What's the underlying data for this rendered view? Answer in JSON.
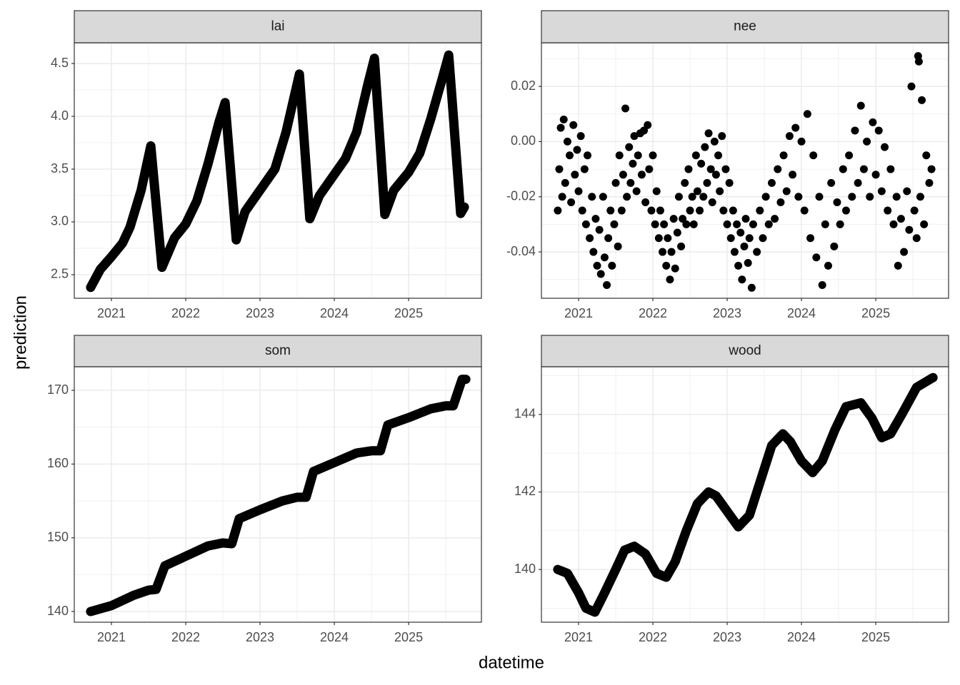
{
  "xlabel": "datetime",
  "ylabel": "prediction",
  "chart_data": [
    {
      "type": "line",
      "title": "lai",
      "color": "#000000",
      "grid": true,
      "xlim": [
        2020.5,
        2025.98
      ],
      "xticks": [
        2021,
        2022,
        2023,
        2024,
        2025
      ],
      "ylim": [
        2.277,
        4.696
      ],
      "yticks": [
        2.5,
        {
          "value": 3,
          "label": "3.0"
        },
        3.5,
        {
          "value": 4,
          "label": "4.0"
        },
        4.5
      ],
      "x": [
        2020.72,
        2020.85,
        2021.0,
        2021.15,
        2021.25,
        2021.4,
        2021.53,
        2021.68,
        2021.85,
        2022.0,
        2022.15,
        2022.3,
        2022.45,
        2022.53,
        2022.68,
        2022.8,
        2023.0,
        2023.2,
        2023.35,
        2023.53,
        2023.67,
        2023.8,
        2024.0,
        2024.15,
        2024.3,
        2024.45,
        2024.54,
        2024.68,
        2024.8,
        2025.0,
        2025.15,
        2025.3,
        2025.45,
        2025.54,
        2025.7,
        2025.75
      ],
      "values": [
        2.38,
        2.55,
        2.67,
        2.8,
        2.95,
        3.3,
        3.72,
        2.57,
        2.85,
        2.98,
        3.2,
        3.55,
        3.95,
        4.13,
        2.83,
        3.1,
        3.3,
        3.5,
        3.85,
        4.4,
        3.03,
        3.25,
        3.45,
        3.6,
        3.85,
        4.3,
        4.55,
        3.07,
        3.3,
        3.47,
        3.65,
        3.98,
        4.35,
        4.58,
        3.08,
        3.14
      ]
    },
    {
      "type": "scatter",
      "title": "nee",
      "color": "#000000",
      "grid": true,
      "xlim": [
        2020.5,
        2025.98
      ],
      "xticks": [
        2021,
        2022,
        2023,
        2024,
        2025
      ],
      "ylim": [
        -0.0568,
        0.0358
      ],
      "yticks": [
        -0.04,
        -0.02,
        {
          "value": 0,
          "label": "0.00"
        },
        0.02
      ],
      "x": [
        2020.72,
        2020.74,
        2020.76,
        2020.78,
        2020.8,
        2020.82,
        2020.85,
        2020.88,
        2020.9,
        2020.93,
        2020.95,
        2020.98,
        2021.0,
        2021.03,
        2021.05,
        2021.08,
        2021.1,
        2021.12,
        2021.15,
        2021.18,
        2021.2,
        2021.23,
        2021.25,
        2021.28,
        2021.3,
        2021.33,
        2021.35,
        2021.38,
        2021.4,
        2021.43,
        2021.45,
        2021.48,
        2021.5,
        2021.53,
        2021.55,
        2021.58,
        2021.6,
        2021.63,
        2021.65,
        2021.68,
        2021.7,
        2021.73,
        2021.75,
        2021.78,
        2021.8,
        2021.83,
        2021.85,
        2021.88,
        2021.9,
        2021.93,
        2021.95,
        2021.98,
        2022.0,
        2022.03,
        2022.05,
        2022.08,
        2022.1,
        2022.13,
        2022.15,
        2022.18,
        2022.2,
        2022.23,
        2022.25,
        2022.28,
        2022.3,
        2022.33,
        2022.35,
        2022.38,
        2022.4,
        2022.43,
        2022.45,
        2022.48,
        2022.5,
        2022.53,
        2022.55,
        2022.58,
        2022.6,
        2022.63,
        2022.65,
        2022.68,
        2022.7,
        2022.73,
        2022.75,
        2022.78,
        2022.8,
        2022.83,
        2022.85,
        2022.88,
        2022.9,
        2022.93,
        2022.95,
        2022.98,
        2023.0,
        2023.03,
        2023.05,
        2023.08,
        2023.1,
        2023.13,
        2023.15,
        2023.18,
        2023.2,
        2023.23,
        2023.25,
        2023.28,
        2023.3,
        2023.33,
        2023.35,
        2023.4,
        2023.44,
        2023.48,
        2023.52,
        2023.56,
        2023.6,
        2023.64,
        2023.68,
        2023.72,
        2023.76,
        2023.8,
        2023.84,
        2023.88,
        2023.92,
        2023.96,
        2024.0,
        2024.04,
        2024.08,
        2024.12,
        2024.16,
        2024.2,
        2024.24,
        2024.28,
        2024.32,
        2024.36,
        2024.4,
        2024.44,
        2024.48,
        2024.52,
        2024.56,
        2024.6,
        2024.64,
        2024.68,
        2024.72,
        2024.76,
        2024.8,
        2024.84,
        2024.88,
        2024.92,
        2024.96,
        2025.0,
        2025.04,
        2025.08,
        2025.12,
        2025.16,
        2025.2,
        2025.24,
        2025.28,
        2025.3,
        2025.34,
        2025.38,
        2025.42,
        2025.45,
        2025.48,
        2025.52,
        2025.55,
        2025.57,
        2025.58,
        2025.6,
        2025.62,
        2025.65,
        2025.68,
        2025.72,
        2025.75
      ],
      "values": [
        -0.025,
        -0.01,
        0.005,
        -0.02,
        0.008,
        -0.015,
        0.0,
        -0.005,
        -0.022,
        0.006,
        -0.012,
        -0.003,
        -0.018,
        0.002,
        -0.025,
        -0.01,
        -0.03,
        -0.005,
        -0.035,
        -0.02,
        -0.04,
        -0.028,
        -0.045,
        -0.032,
        -0.048,
        -0.02,
        -0.042,
        -0.052,
        -0.035,
        -0.025,
        -0.045,
        -0.03,
        -0.015,
        -0.038,
        -0.005,
        -0.025,
        -0.012,
        0.012,
        -0.02,
        -0.002,
        -0.015,
        -0.008,
        0.002,
        -0.018,
        -0.005,
        0.003,
        -0.012,
        0.004,
        -0.022,
        0.006,
        -0.01,
        -0.025,
        -0.005,
        -0.03,
        -0.018,
        -0.035,
        -0.025,
        -0.04,
        -0.03,
        -0.045,
        -0.035,
        -0.05,
        -0.04,
        -0.028,
        -0.046,
        -0.033,
        -0.02,
        -0.038,
        -0.028,
        -0.015,
        -0.03,
        -0.01,
        -0.025,
        -0.02,
        -0.03,
        -0.005,
        -0.018,
        -0.025,
        -0.008,
        -0.02,
        -0.002,
        -0.015,
        0.003,
        -0.01,
        -0.022,
        0.0,
        -0.012,
        -0.005,
        -0.018,
        0.002,
        -0.025,
        -0.01,
        -0.03,
        -0.015,
        -0.035,
        -0.025,
        -0.04,
        -0.03,
        -0.045,
        -0.033,
        -0.05,
        -0.038,
        -0.028,
        -0.044,
        -0.035,
        -0.053,
        -0.03,
        -0.04,
        -0.025,
        -0.035,
        -0.02,
        -0.03,
        -0.015,
        -0.028,
        -0.01,
        -0.022,
        -0.005,
        -0.018,
        0.002,
        -0.012,
        0.005,
        -0.02,
        0.0,
        -0.025,
        0.01,
        -0.035,
        -0.005,
        -0.042,
        -0.02,
        -0.052,
        -0.03,
        -0.045,
        -0.015,
        -0.038,
        -0.022,
        -0.03,
        -0.01,
        -0.025,
        -0.005,
        -0.02,
        0.004,
        -0.015,
        0.013,
        -0.01,
        0.0,
        -0.02,
        0.007,
        -0.012,
        0.004,
        -0.018,
        -0.002,
        -0.025,
        -0.01,
        -0.03,
        -0.02,
        -0.045,
        -0.028,
        -0.04,
        -0.018,
        -0.032,
        0.02,
        -0.025,
        -0.035,
        0.031,
        0.029,
        -0.02,
        0.015,
        -0.03,
        -0.005,
        -0.015,
        -0.01
      ]
    },
    {
      "type": "line",
      "title": "som",
      "color": "#000000",
      "grid": true,
      "xlim": [
        2020.5,
        2025.98
      ],
      "xticks": [
        2021,
        2022,
        2023,
        2024,
        2025
      ],
      "ylim": [
        138.55,
        173.2
      ],
      "yticks": [
        140,
        150,
        160,
        170
      ],
      "x": [
        2020.72,
        2021.0,
        2021.3,
        2021.5,
        2021.6,
        2021.72,
        2022.0,
        2022.3,
        2022.5,
        2022.62,
        2022.72,
        2023.0,
        2023.3,
        2023.5,
        2023.62,
        2023.72,
        2024.0,
        2024.3,
        2024.5,
        2024.62,
        2024.72,
        2025.0,
        2025.3,
        2025.5,
        2025.6,
        2025.72,
        2025.77
      ],
      "values": [
        140,
        140.8,
        142.2,
        142.9,
        143.0,
        146.2,
        147.5,
        148.9,
        149.3,
        149.2,
        152.6,
        153.8,
        155.0,
        155.5,
        155.5,
        159.0,
        160.2,
        161.5,
        161.8,
        161.8,
        165.3,
        166.3,
        167.5,
        167.9,
        167.9,
        171.5,
        171.5
      ]
    },
    {
      "type": "line",
      "title": "wood",
      "color": "#000000",
      "grid": true,
      "xlim": [
        2020.5,
        2025.98
      ],
      "xticks": [
        2021,
        2022,
        2023,
        2024,
        2025
      ],
      "ylim": [
        138.64,
        145.23
      ],
      "yticks": [
        140,
        142,
        144
      ],
      "x": [
        2020.72,
        2020.85,
        2021.0,
        2021.1,
        2021.22,
        2021.35,
        2021.5,
        2021.62,
        2021.75,
        2021.9,
        2022.05,
        2022.18,
        2022.3,
        2022.45,
        2022.6,
        2022.75,
        2022.85,
        2023.0,
        2023.15,
        2023.3,
        2023.45,
        2023.6,
        2023.75,
        2023.85,
        2024.0,
        2024.15,
        2024.28,
        2024.45,
        2024.6,
        2024.8,
        2024.95,
        2025.08,
        2025.2,
        2025.35,
        2025.55,
        2025.77
      ],
      "values": [
        140.0,
        139.9,
        139.4,
        139.0,
        138.9,
        139.4,
        140.0,
        140.5,
        140.6,
        140.4,
        139.9,
        139.8,
        140.2,
        141.0,
        141.7,
        142.0,
        141.9,
        141.5,
        141.1,
        141.4,
        142.3,
        143.2,
        143.5,
        143.3,
        142.8,
        142.5,
        142.8,
        143.6,
        144.2,
        144.3,
        143.9,
        143.4,
        143.5,
        144.0,
        144.7,
        144.95
      ]
    }
  ]
}
